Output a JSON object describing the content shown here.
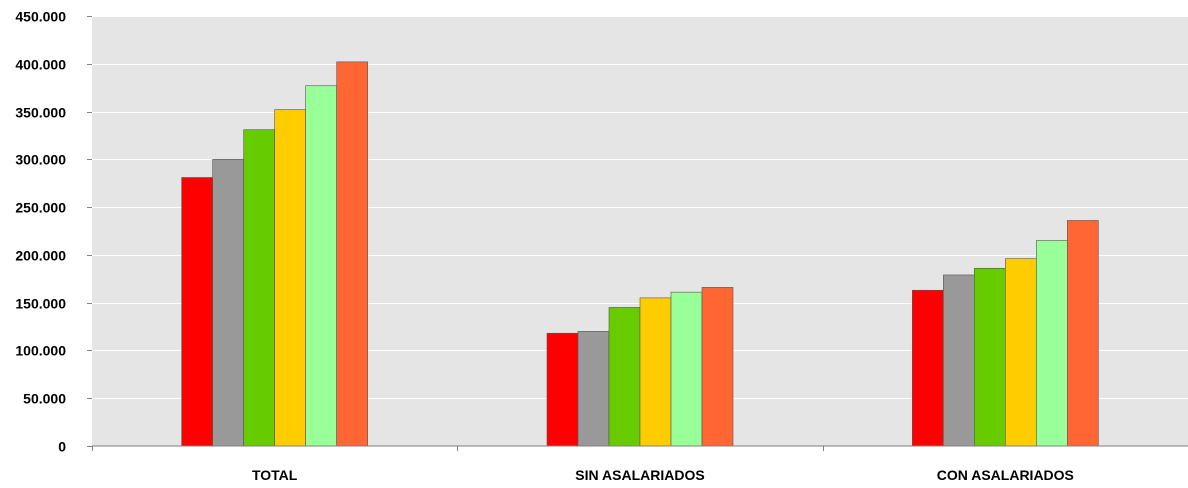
{
  "chart_data": {
    "type": "bar",
    "title": "",
    "xlabel": "",
    "ylabel": "",
    "ylim": [
      0,
      450000
    ],
    "y_ticks": [
      0,
      50000,
      100000,
      150000,
      200000,
      250000,
      300000,
      350000,
      400000,
      450000
    ],
    "y_tick_labels": [
      "0",
      "50.000",
      "100.000",
      "150.000",
      "200.000",
      "250.000",
      "300.000",
      "350.000",
      "400.000",
      "450.000"
    ],
    "grid": true,
    "legend": "none",
    "plot_background": "#e5e5e5",
    "categories": [
      "TOTAL",
      "SIN ASALARIADOS",
      "CON ASALARIADOS"
    ],
    "series": [
      {
        "color": "#ff0000",
        "values": [
          281000,
          118000,
          163000
        ]
      },
      {
        "color": "#999999",
        "values": [
          300000,
          120000,
          179000
        ]
      },
      {
        "color": "#66cc00",
        "values": [
          331000,
          145000,
          186000
        ]
      },
      {
        "color": "#ffcc00",
        "values": [
          352000,
          155000,
          196000
        ]
      },
      {
        "color": "#99ff99",
        "values": [
          377000,
          161000,
          215000
        ]
      },
      {
        "color": "#ff6633",
        "values": [
          402000,
          166000,
          236000
        ]
      }
    ]
  }
}
